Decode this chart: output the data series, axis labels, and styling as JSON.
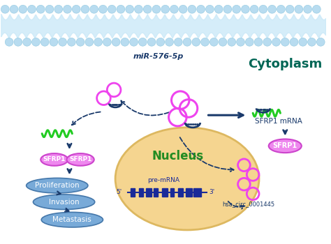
{
  "bg_color": "#ffffff",
  "membrane_bubble_color": "#b8dcf0",
  "membrane_tail_color": "#c8e8f8",
  "nucleus_face": "#f5d590",
  "nucleus_edge": "#ddb860",
  "cytoplasm_label": "Cytoplasm",
  "cytoplasm_color": "#006655",
  "nucleus_label": "Nucleus",
  "nucleus_label_color": "#228B22",
  "mir_label": "miR-576-5p",
  "mir_color": "#1a3a6b",
  "sfrp1_mrna_label": "SFRP1 mRNA",
  "sfrp1_label": "SFRP1",
  "pre_mrna_label": "pre-mRNA",
  "circ_label": "hsa_circ_0001445",
  "arrow_color": "#1a3a6b",
  "green_wave_color": "#22cc22",
  "blue_oval_labels": [
    "Proliferation",
    "Invasion",
    "Metastasis"
  ],
  "blue_oval_face": "#78aad8",
  "blue_oval_edge": "#4477aa",
  "pink_ring_color": "#ee44ee",
  "pink_face": "#ee88ee",
  "pink_edge": "#cc44cc",
  "gene_color": "#1a2a99",
  "hairpin_color": "#1a3a6b"
}
